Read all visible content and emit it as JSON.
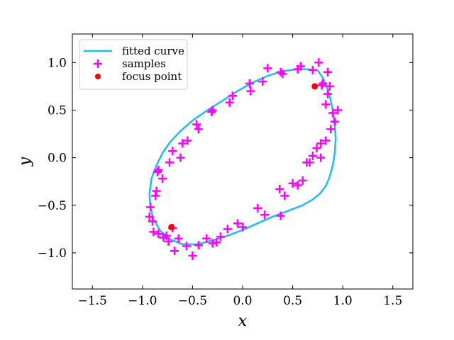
{
  "chart_data": {
    "type": "scatter",
    "title": "",
    "xlabel": "x",
    "ylabel": "y",
    "xlim": [
      -1.7,
      1.7
    ],
    "ylim": [
      -1.38,
      1.3
    ],
    "xticks": [
      -1.5,
      -1.0,
      -0.5,
      0.0,
      0.5,
      1.0,
      1.5
    ],
    "xtick_labels": [
      "−1.5",
      "−1.0",
      "−0.5",
      "0.0",
      "0.5",
      "1.0",
      "1.5"
    ],
    "yticks": [
      -1.0,
      -0.5,
      0.0,
      0.5,
      1.0
    ],
    "ytick_labels": [
      "−1.0",
      "−0.5",
      "0.0",
      "0.5",
      "1.0"
    ],
    "grid": false,
    "legend_position": "upper-left",
    "series": [
      {
        "name": "fitted curve",
        "type": "line",
        "color": "#1fbcf2",
        "x": [
          0.75,
          0.8,
          0.84,
          0.87,
          0.9,
          0.92,
          0.93,
          0.92,
          0.9,
          0.87,
          0.83,
          0.77,
          0.7,
          0.6,
          0.45,
          0.3,
          0.15,
          0.0,
          -0.15,
          -0.3,
          -0.45,
          -0.6,
          -0.72,
          -0.82,
          -0.89,
          -0.92,
          -0.93,
          -0.91,
          -0.86,
          -0.8,
          -0.72,
          -0.62,
          -0.5,
          -0.35,
          -0.2,
          -0.05,
          0.1,
          0.25,
          0.4,
          0.55,
          0.65,
          0.73,
          0.75
        ],
        "y": [
          0.92,
          0.84,
          0.75,
          0.65,
          0.5,
          0.35,
          0.2,
          0.05,
          -0.08,
          -0.2,
          -0.3,
          -0.38,
          -0.44,
          -0.5,
          -0.56,
          -0.62,
          -0.69,
          -0.76,
          -0.82,
          -0.87,
          -0.91,
          -0.91,
          -0.86,
          -0.77,
          -0.65,
          -0.52,
          -0.38,
          -0.22,
          -0.08,
          0.05,
          0.17,
          0.28,
          0.39,
          0.5,
          0.6,
          0.7,
          0.79,
          0.86,
          0.91,
          0.93,
          0.93,
          0.92,
          0.92
        ]
      },
      {
        "name": "samples",
        "type": "scatter",
        "marker": "plus",
        "color": "#ff00ff",
        "x": [
          0.76,
          0.85,
          0.8,
          0.79,
          0.7,
          0.58,
          0.55,
          0.4,
          0.38,
          0.25,
          0.2,
          0.07,
          0.08,
          -0.1,
          -0.13,
          -0.3,
          -0.31,
          -0.44,
          -0.46,
          -0.55,
          -0.6,
          -0.62,
          -0.7,
          -0.73,
          -0.84,
          -0.85,
          -0.8,
          -0.86,
          -0.87,
          -0.92,
          -0.93,
          -0.9,
          -0.89,
          -0.84,
          -0.79,
          -0.76,
          -0.74,
          -0.68,
          -0.7,
          -0.64,
          -0.56,
          -0.5,
          -0.44,
          -0.36,
          -0.3,
          -0.26,
          -0.22,
          -0.15,
          -0.05,
          0.0,
          0.15,
          0.22,
          0.37,
          0.38,
          0.42,
          0.5,
          0.55,
          0.6,
          0.64,
          0.67,
          0.7,
          0.74,
          0.78,
          0.83,
          0.88,
          0.92,
          0.95,
          0.9,
          0.85,
          0.87,
          0.83,
          0.78
        ],
        "y": [
          1.0,
          0.9,
          0.78,
          0.76,
          0.92,
          0.96,
          0.93,
          0.88,
          0.9,
          0.94,
          0.8,
          0.78,
          0.7,
          0.65,
          0.58,
          0.5,
          0.48,
          0.3,
          0.35,
          0.18,
          0.15,
          0.0,
          0.07,
          -0.05,
          -0.13,
          -0.15,
          -0.22,
          -0.35,
          -0.4,
          -0.52,
          -0.62,
          -0.67,
          -0.78,
          -0.8,
          -0.84,
          -0.82,
          -0.88,
          -0.98,
          -0.74,
          -0.85,
          -0.93,
          -1.03,
          -0.92,
          -0.85,
          -0.9,
          -0.89,
          -0.83,
          -0.75,
          -0.69,
          -0.73,
          -0.53,
          -0.6,
          -0.33,
          -0.61,
          -0.4,
          -0.27,
          -0.29,
          -0.24,
          -0.05,
          -0.05,
          0.02,
          0.1,
          0.15,
          0.18,
          0.3,
          0.38,
          0.5,
          0.47,
          0.67,
          0.75,
          0.56,
          0.0
        ]
      },
      {
        "name": "focus point",
        "type": "scatter",
        "marker": "circle",
        "color": "#ff0000",
        "x": [
          0.72,
          -0.71
        ],
        "y": [
          0.75,
          -0.73
        ]
      }
    ]
  }
}
